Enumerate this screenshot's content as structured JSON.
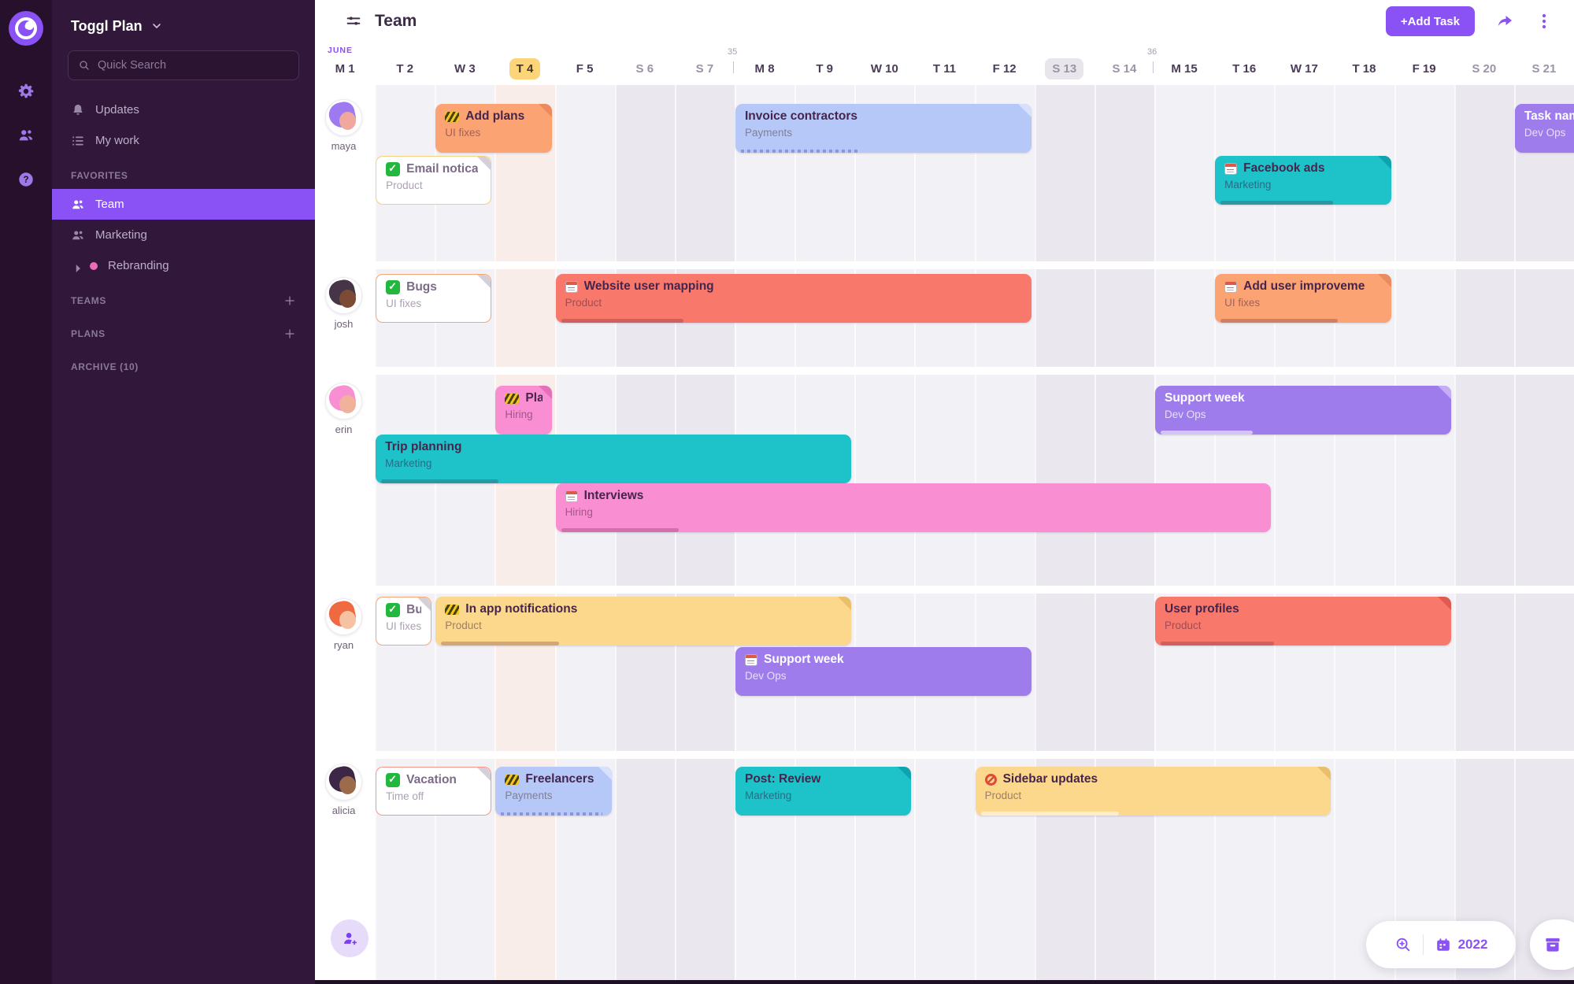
{
  "rail": {
    "icons": [
      "toggl-logo",
      "settings",
      "members",
      "help"
    ]
  },
  "sidebar": {
    "workspace": "Toggl Plan",
    "search_placeholder": "Quick Search",
    "menu": [
      {
        "label": "Updates",
        "icon": "bell"
      },
      {
        "label": "My work",
        "icon": "list"
      }
    ],
    "sections": [
      {
        "label": "FAVORITES",
        "plus": false,
        "items": [
          {
            "label": "Team",
            "icon": "people",
            "active": true
          },
          {
            "label": "Marketing",
            "icon": "people",
            "active": false
          },
          {
            "label": "Rebranding",
            "icon": "dot",
            "caret": true,
            "active": false
          }
        ]
      },
      {
        "label": "TEAMS",
        "plus": true,
        "items": []
      },
      {
        "label": "PLANS",
        "plus": true,
        "items": []
      },
      {
        "label": "ARCHIVE (10)",
        "plus": false,
        "items": []
      }
    ]
  },
  "topbar": {
    "title": "Team",
    "add_task": "+Add Task"
  },
  "calendar": {
    "month": "JUNE",
    "days": [
      {
        "label": "M 1"
      },
      {
        "label": "T 2"
      },
      {
        "label": "W 3"
      },
      {
        "label": "T 4",
        "today": true
      },
      {
        "label": "F 5"
      },
      {
        "label": "S 6",
        "weekend": true
      },
      {
        "label": "S 7",
        "weekend": true
      },
      {
        "label": "M 8",
        "week": "35"
      },
      {
        "label": "T 9"
      },
      {
        "label": "W 10"
      },
      {
        "label": "T 11"
      },
      {
        "label": "F 12"
      },
      {
        "label": "S 13",
        "weekend": true,
        "selected": true
      },
      {
        "label": "S 14",
        "weekend": true
      },
      {
        "label": "M 15",
        "week": "36"
      },
      {
        "label": "T 16"
      },
      {
        "label": "W 17"
      },
      {
        "label": "T 18"
      },
      {
        "label": "F 19"
      },
      {
        "label": "S 20",
        "weekend": true
      },
      {
        "label": "S 21",
        "weekend": true
      }
    ]
  },
  "people": [
    {
      "name": "maya",
      "tasks": [
        {
          "title": "Add plans",
          "tag": "UI fixes",
          "color": "orange",
          "icon": "stripes",
          "start": 2,
          "span": 2,
          "lane": 0,
          "fold": true
        },
        {
          "title": "Invoice contractors",
          "tag": "Payments",
          "color": "blue",
          "start": 7,
          "span": 5,
          "lane": 0,
          "fold": true,
          "progress": 44,
          "progress_style": "dotted"
        },
        {
          "title": "Task name",
          "tag": "Dev Ops",
          "color": "purple",
          "start": 20,
          "span": 2,
          "lane": 0
        },
        {
          "title": "Email notica",
          "tag": "Product",
          "color": "white",
          "border": "yellow",
          "icon": "check",
          "start": 1,
          "span": 2,
          "lane": 1,
          "fold": true
        },
        {
          "title": "Facebook ads",
          "tag": "Marketing",
          "color": "teal",
          "icon": "calendar",
          "start": 15,
          "span": 3,
          "lane": 1,
          "fold": true,
          "progress": 70
        }
      ]
    },
    {
      "name": "josh",
      "tasks": [
        {
          "title": "Bugs",
          "tag": "UI fixes",
          "color": "white",
          "border": "orange",
          "icon": "check",
          "start": 1,
          "span": 2,
          "lane": 0,
          "fold": true
        },
        {
          "title": "Website user mapping",
          "tag": "Product",
          "color": "salmon",
          "icon": "calendar",
          "start": 4,
          "span": 8,
          "lane": 0,
          "progress": 28
        },
        {
          "title": "Add user improveme",
          "tag": "UI fixes",
          "color": "orange",
          "icon": "calendar",
          "start": 15,
          "span": 3,
          "lane": 0,
          "fold": true,
          "progress": 73
        }
      ]
    },
    {
      "name": "erin",
      "tasks": [
        {
          "title": "Pla",
          "tag": "Hiring",
          "color": "pink",
          "icon": "stripes",
          "start": 3,
          "span": 1,
          "lane": 0,
          "fold": true
        },
        {
          "title": "Support week",
          "tag": "Dev Ops",
          "color": "purple",
          "start": 14,
          "span": 5,
          "lane": 0,
          "fold": true,
          "progress": 35,
          "progress_style": "light"
        },
        {
          "title": "Trip planning",
          "tag": "Marketing",
          "color": "teal",
          "start": 1,
          "span": 8,
          "lane": 1,
          "progress": 27
        },
        {
          "title": "Interviews",
          "tag": "Hiring",
          "color": "pink",
          "icon": "calendar",
          "start": 4,
          "span": 12,
          "lane": 2,
          "progress": 18
        }
      ]
    },
    {
      "name": "ryan",
      "tasks": [
        {
          "title": "Bug",
          "tag": "UI fixes",
          "color": "white",
          "border": "orange",
          "icon": "check",
          "start": 1,
          "span": 1,
          "lane": 0,
          "fold": true
        },
        {
          "title": "In app notifications",
          "tag": "Product",
          "color": "yellow",
          "icon": "stripes",
          "start": 2,
          "span": 7,
          "lane": 0,
          "fold": true,
          "progress": 31
        },
        {
          "title": "User profiles",
          "tag": "Product",
          "color": "salmon",
          "start": 14,
          "span": 5,
          "lane": 0,
          "fold": true,
          "progress": 42
        },
        {
          "title": "Support week",
          "tag": "Dev Ops",
          "color": "purple",
          "icon": "calendar",
          "start": 7,
          "span": 5,
          "lane": 1
        }
      ]
    },
    {
      "name": "alicia",
      "tasks": [
        {
          "title": "Vacation",
          "tag": "Time off",
          "color": "white",
          "border": "salmon",
          "icon": "check",
          "start": 1,
          "span": 2,
          "lane": 0,
          "fold": true
        },
        {
          "title": "Freelancers",
          "tag": "Payments",
          "color": "blue",
          "icon": "stripes",
          "start": 3,
          "span": 2,
          "lane": 0,
          "fold": true,
          "progress": 97,
          "progress_style": "dotted"
        },
        {
          "title": "Post: Review",
          "tag": "Marketing",
          "color": "teal",
          "start": 7,
          "span": 3,
          "lane": 0,
          "fold": true
        },
        {
          "title": "Sidebar updates",
          "tag": "Product",
          "color": "yellow",
          "icon": "noentry",
          "start": 11,
          "span": 6,
          "lane": 0,
          "fold": true,
          "progress": 42,
          "progress_style": "light"
        }
      ]
    }
  ],
  "footer": {
    "year": "2022"
  }
}
